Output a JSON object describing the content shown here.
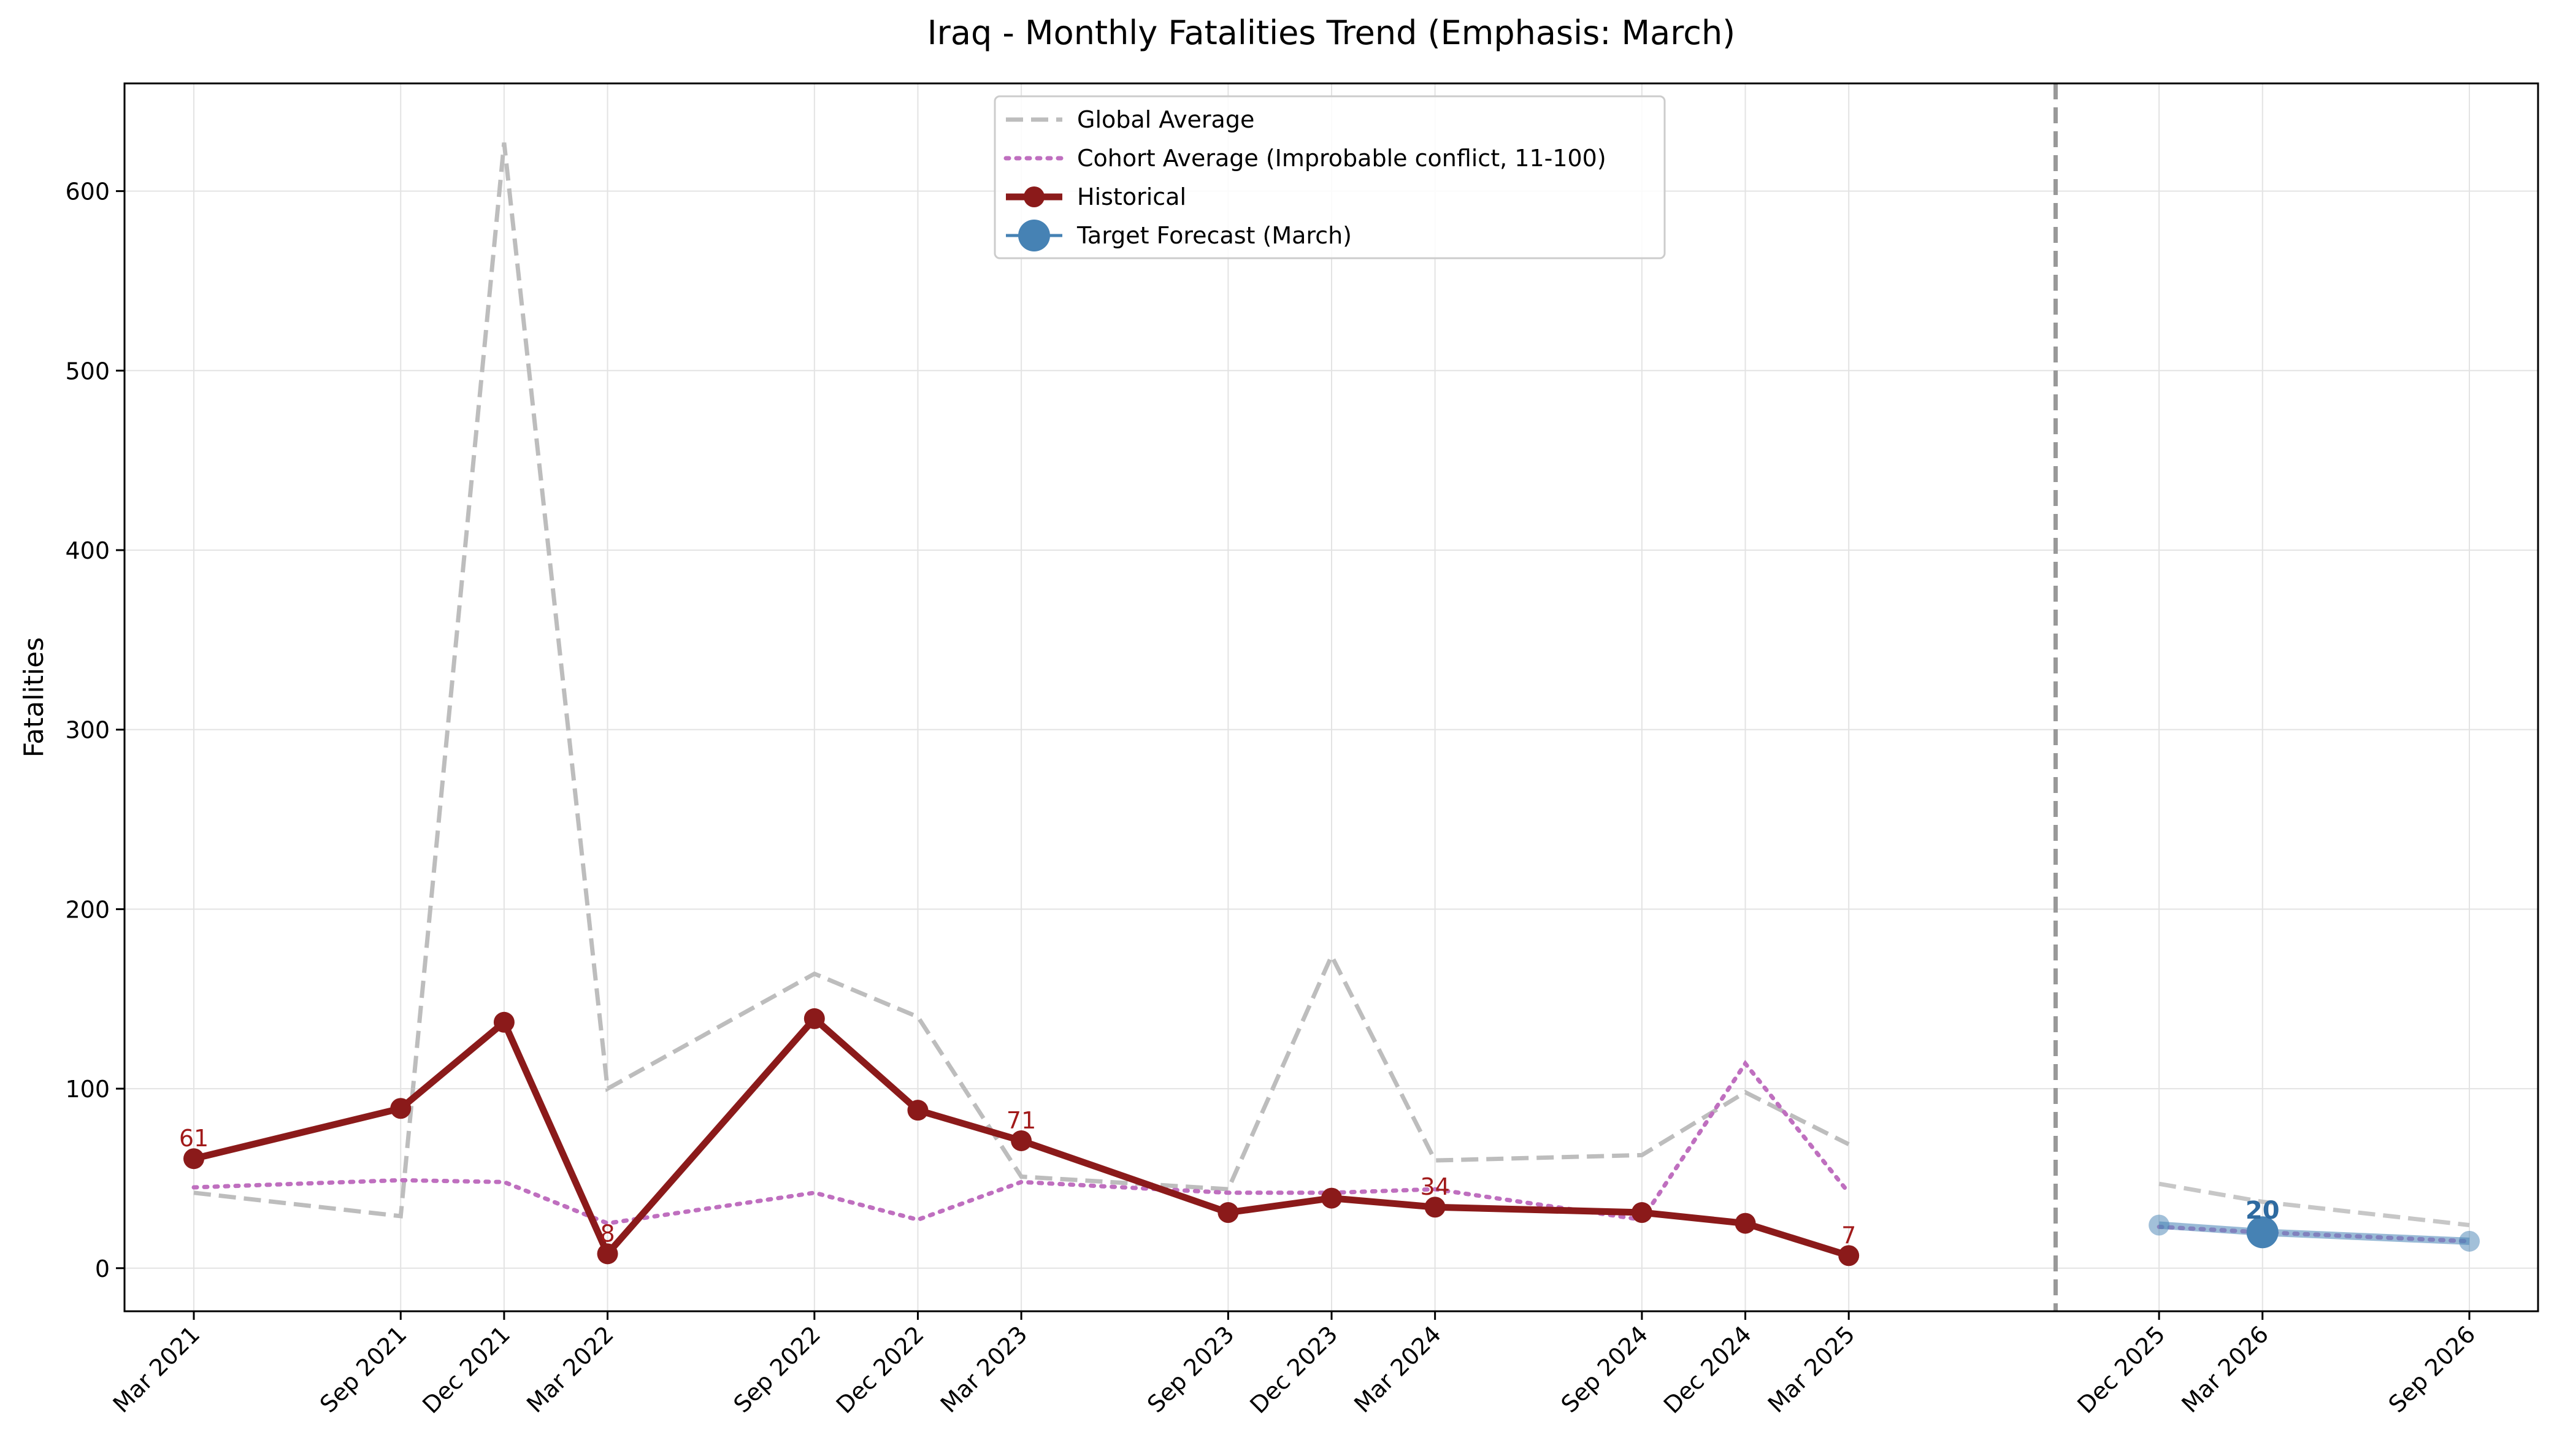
{
  "chart_data": {
    "type": "line",
    "title": "Iraq - Monthly Fatalities Trend (Emphasis: March)",
    "xlabel": "",
    "ylabel": "Fatalities",
    "ylim": [
      -24,
      660
    ],
    "yticks": [
      0,
      100,
      200,
      300,
      400,
      500,
      600
    ],
    "grid": true,
    "legend_position": "top-center",
    "x_tick_dates": [
      "2021-03",
      "2021-09",
      "2021-12",
      "2022-03",
      "2022-09",
      "2022-12",
      "2023-03",
      "2023-09",
      "2023-12",
      "2024-03",
      "2024-09",
      "2024-12",
      "2025-03",
      "2025-12",
      "2026-03",
      "2026-09"
    ],
    "x_tick_labels": [
      "Mar 2021",
      "Sep 2021",
      "Dec 2021",
      "Mar 2022",
      "Sep 2022",
      "Dec 2022",
      "Mar 2023",
      "Sep 2023",
      "Dec 2023",
      "Mar 2024",
      "Sep 2024",
      "Dec 2024",
      "Mar 2025",
      "Dec 2025",
      "Mar 2026",
      "Sep 2026"
    ],
    "forecast_divider_date": "2025-09",
    "series": [
      {
        "name": "Global Average",
        "style": "dashed",
        "color": "#bdbdbd",
        "segments": [
          {
            "x": [
              "2021-03",
              "2021-09",
              "2021-12",
              "2022-03",
              "2022-09",
              "2022-12",
              "2023-03",
              "2023-09",
              "2023-12",
              "2024-03",
              "2024-09",
              "2024-12",
              "2025-03"
            ],
            "y": [
              42,
              29,
              627,
              100,
              164,
              140,
              51,
              44,
              174,
              60,
              63,
              98,
              69
            ]
          },
          {
            "x": [
              "2025-12",
              "2026-03",
              "2026-09"
            ],
            "y": [
              47,
              37,
              24
            ]
          }
        ]
      },
      {
        "name": "Cohort Average (Improbable conflict, 11-100)",
        "style": "dotted",
        "color": "#bf6fbf",
        "segments": [
          {
            "x": [
              "2021-03",
              "2021-09",
              "2021-12",
              "2022-03",
              "2022-09",
              "2022-12",
              "2023-03",
              "2023-09",
              "2023-12",
              "2024-03",
              "2024-09",
              "2024-12",
              "2025-03"
            ],
            "y": [
              45,
              49,
              48,
              25,
              42,
              27,
              48,
              42,
              42,
              44,
              27,
              114,
              42
            ]
          },
          {
            "x": [
              "2025-12",
              "2026-03",
              "2026-09"
            ],
            "y": [
              23,
              20,
              15
            ]
          }
        ]
      },
      {
        "name": "Historical",
        "style": "solid-markers",
        "color": "#8b1a1a",
        "x": [
          "2021-03",
          "2021-09",
          "2021-12",
          "2022-03",
          "2022-09",
          "2022-12",
          "2023-03",
          "2023-09",
          "2023-12",
          "2024-03",
          "2024-09",
          "2024-12",
          "2025-03"
        ],
        "y": [
          61,
          89,
          137,
          8,
          139,
          88,
          71,
          31,
          39,
          34,
          31,
          25,
          7
        ],
        "labeled_points": [
          {
            "x": "2021-03",
            "y": 61,
            "label": "61"
          },
          {
            "x": "2022-03",
            "y": 8,
            "label": "8"
          },
          {
            "x": "2023-03",
            "y": 71,
            "label": "71"
          },
          {
            "x": "2024-03",
            "y": 34,
            "label": "34"
          },
          {
            "x": "2025-03",
            "y": 7,
            "label": "7"
          }
        ]
      },
      {
        "name": "Target Forecast (March)",
        "style": "forecast",
        "color": "#4682b4",
        "x": [
          "2025-12",
          "2026-03",
          "2026-09"
        ],
        "y": [
          24,
          20,
          15
        ],
        "highlight": {
          "x": "2026-03",
          "y": 20,
          "label": "20"
        }
      }
    ]
  }
}
